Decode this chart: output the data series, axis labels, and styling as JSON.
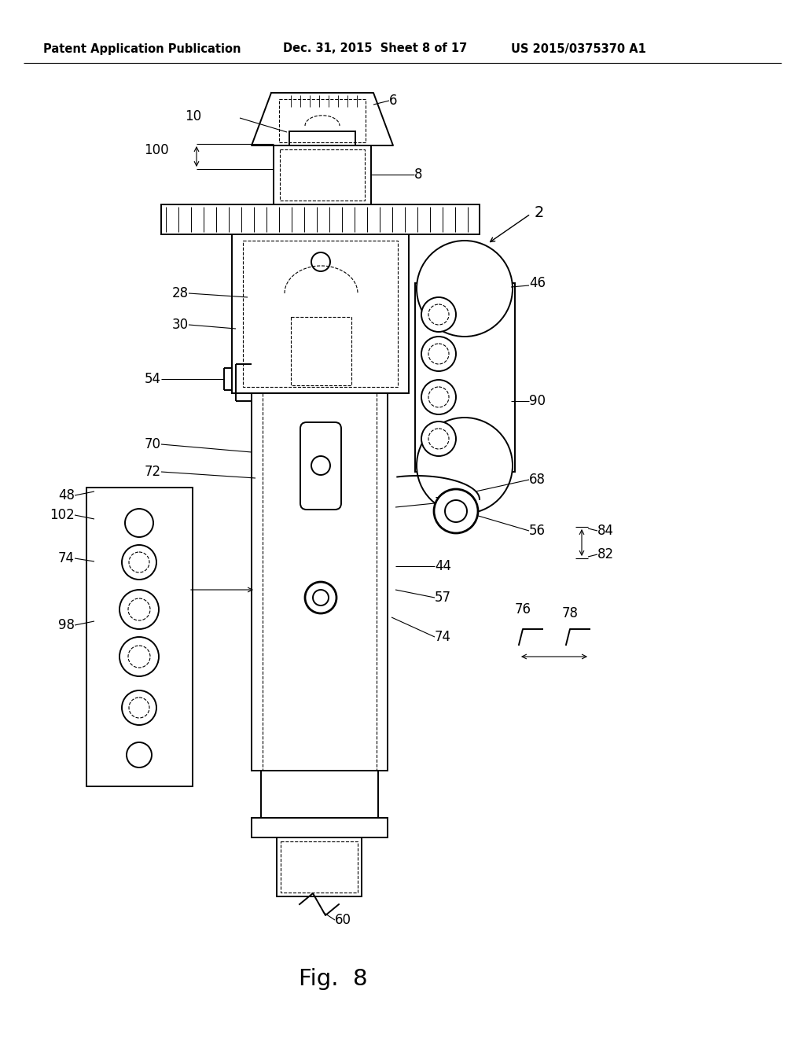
{
  "bg_color": "#ffffff",
  "header_left": "Patent Application Publication",
  "header_mid": "Dec. 31, 2015  Sheet 8 of 17",
  "header_right": "US 2015/0375370 A1",
  "fig_label": "Fig.  8",
  "header_fontsize": 10.5,
  "label_fontsize": 12,
  "fig_label_fontsize": 21
}
